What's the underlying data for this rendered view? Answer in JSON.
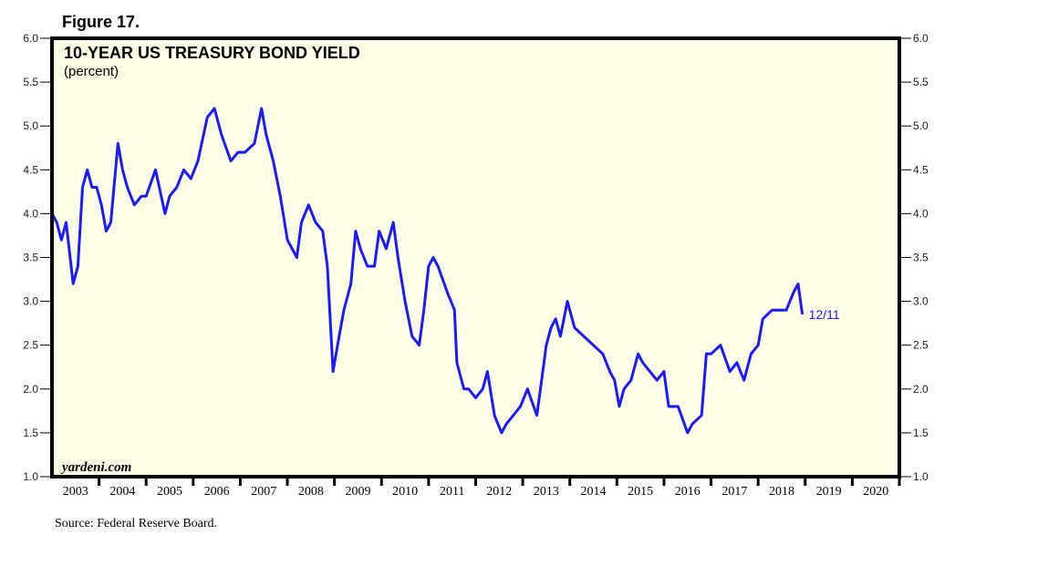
{
  "figure_label": "Figure 17.",
  "source": "Source: Federal Reserve Board.",
  "watermark": "yardeni.com",
  "chart_data": {
    "type": "line",
    "title": "10-YEAR US TREASURY BOND YIELD",
    "subtitle": "(percent)",
    "xlabel": "",
    "ylabel": "",
    "xlim": [
      2003,
      2021
    ],
    "ylim": [
      1.0,
      6.0
    ],
    "yticks": [
      "1.0",
      "1.5",
      "2.0",
      "2.5",
      "3.0",
      "3.5",
      "4.0",
      "4.5",
      "5.0",
      "5.5",
      "6.0"
    ],
    "xticks": [
      "2003",
      "2004",
      "2005",
      "2006",
      "2007",
      "2008",
      "2009",
      "2010",
      "2011",
      "2012",
      "2013",
      "2014",
      "2015",
      "2016",
      "2017",
      "2018",
      "2019",
      "2020"
    ],
    "grid": false,
    "line_color": "#1a1aff",
    "background": "#fefee6",
    "end_label": "12/11",
    "series": [
      {
        "name": "10-Year US Treasury Bond Yield",
        "x": [
          2003.0,
          2003.1,
          2003.2,
          2003.3,
          2003.45,
          2003.55,
          2003.65,
          2003.75,
          2003.85,
          2003.95,
          2004.05,
          2004.15,
          2004.25,
          2004.4,
          2004.5,
          2004.6,
          2004.75,
          2004.9,
          2005.0,
          2005.2,
          2005.4,
          2005.5,
          2005.65,
          2005.8,
          2005.95,
          2006.1,
          2006.3,
          2006.45,
          2006.6,
          2006.8,
          2006.95,
          2007.1,
          2007.3,
          2007.45,
          2007.55,
          2007.7,
          2007.85,
          2008.0,
          2008.2,
          2008.3,
          2008.45,
          2008.6,
          2008.75,
          2008.85,
          2008.97,
          2009.1,
          2009.2,
          2009.35,
          2009.45,
          2009.55,
          2009.7,
          2009.85,
          2009.95,
          2010.1,
          2010.25,
          2010.35,
          2010.5,
          2010.65,
          2010.8,
          2010.9,
          2011.0,
          2011.1,
          2011.2,
          2011.4,
          2011.55,
          2011.6,
          2011.75,
          2011.85,
          2012.0,
          2012.15,
          2012.25,
          2012.4,
          2012.55,
          2012.65,
          2012.8,
          2012.95,
          2013.1,
          2013.3,
          2013.4,
          2013.5,
          2013.6,
          2013.7,
          2013.8,
          2013.95,
          2014.1,
          2014.3,
          2014.5,
          2014.7,
          2014.85,
          2014.95,
          2015.05,
          2015.15,
          2015.3,
          2015.45,
          2015.55,
          2015.7,
          2015.85,
          2016.0,
          2016.1,
          2016.3,
          2016.5,
          2016.6,
          2016.8,
          2016.9,
          2017.0,
          2017.2,
          2017.4,
          2017.55,
          2017.7,
          2017.85,
          2018.0,
          2018.1,
          2018.3,
          2018.45,
          2018.6,
          2018.75,
          2018.85,
          2018.9,
          2018.94
        ],
        "y": [
          4.0,
          3.9,
          3.7,
          3.9,
          3.2,
          3.4,
          4.3,
          4.5,
          4.3,
          4.3,
          4.1,
          3.8,
          3.9,
          4.8,
          4.5,
          4.3,
          4.1,
          4.2,
          4.2,
          4.5,
          4.0,
          4.2,
          4.3,
          4.5,
          4.4,
          4.6,
          5.1,
          5.2,
          4.9,
          4.6,
          4.7,
          4.7,
          4.8,
          5.2,
          4.9,
          4.6,
          4.2,
          3.7,
          3.5,
          3.9,
          4.1,
          3.9,
          3.8,
          3.4,
          2.2,
          2.6,
          2.9,
          3.2,
          3.8,
          3.6,
          3.4,
          3.4,
          3.8,
          3.6,
          3.9,
          3.5,
          3.0,
          2.6,
          2.5,
          2.9,
          3.4,
          3.5,
          3.4,
          3.1,
          2.9,
          2.3,
          2.0,
          2.0,
          1.9,
          2.0,
          2.2,
          1.7,
          1.5,
          1.6,
          1.7,
          1.8,
          2.0,
          1.7,
          2.1,
          2.5,
          2.7,
          2.8,
          2.6,
          3.0,
          2.7,
          2.6,
          2.5,
          2.4,
          2.2,
          2.1,
          1.8,
          2.0,
          2.1,
          2.4,
          2.3,
          2.2,
          2.1,
          2.2,
          1.8,
          1.8,
          1.5,
          1.6,
          1.7,
          2.4,
          2.4,
          2.5,
          2.2,
          2.3,
          2.1,
          2.4,
          2.5,
          2.8,
          2.9,
          2.9,
          2.9,
          3.1,
          3.2,
          3.0,
          2.85
        ]
      }
    ]
  }
}
